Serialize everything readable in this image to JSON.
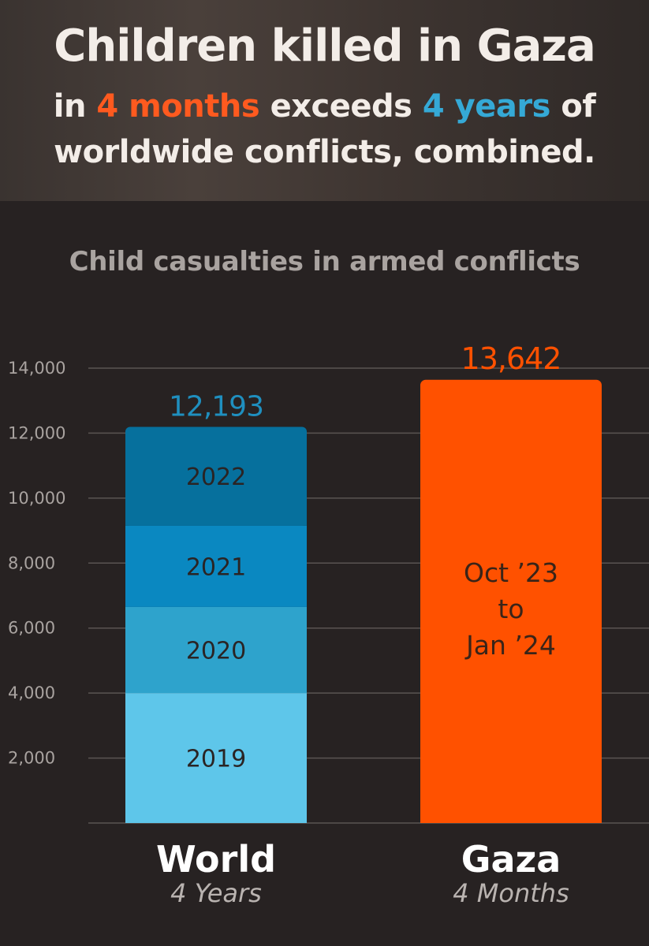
{
  "header": {
    "title": "Children killed in Gaza",
    "line2": {
      "pre": "in ",
      "hl1": "4 months",
      "mid": " exceeds ",
      "hl2": "4 years",
      "post": " of"
    },
    "line3": "worldwide conflicts, combined."
  },
  "colors": {
    "gaza": "#ff5100",
    "world_total_label": "#1f8fbf",
    "seg_2019": "#5ec6ea",
    "seg_2020": "#2ea3cc",
    "seg_2021": "#0a88c1",
    "seg_2022": "#06709d"
  },
  "chart_data": {
    "type": "bar",
    "title": "Child casualties in armed conflicts",
    "ylim": [
      0,
      14000
    ],
    "yticks": [
      2000,
      4000,
      6000,
      8000,
      10000,
      12000,
      14000
    ],
    "ytick_labels": [
      "2,000",
      "4,000",
      "6,000",
      "8,000",
      "10,000",
      "12,000",
      "14,000"
    ],
    "grid": true,
    "bars": [
      {
        "category": "World",
        "sublabel": "4 Years",
        "total": 12193,
        "total_label": "12,193",
        "segments": [
          {
            "label": "2019",
            "value": 4000
          },
          {
            "label": "2020",
            "value": 2650
          },
          {
            "label": "2021",
            "value": 2500
          },
          {
            "label": "2022",
            "value": 3043
          }
        ]
      },
      {
        "category": "Gaza",
        "sublabel": "4 Months",
        "total": 13642,
        "total_label": "13,642",
        "inner_label": [
          "Oct ’23",
          "to",
          "Jan ’24"
        ]
      }
    ]
  }
}
